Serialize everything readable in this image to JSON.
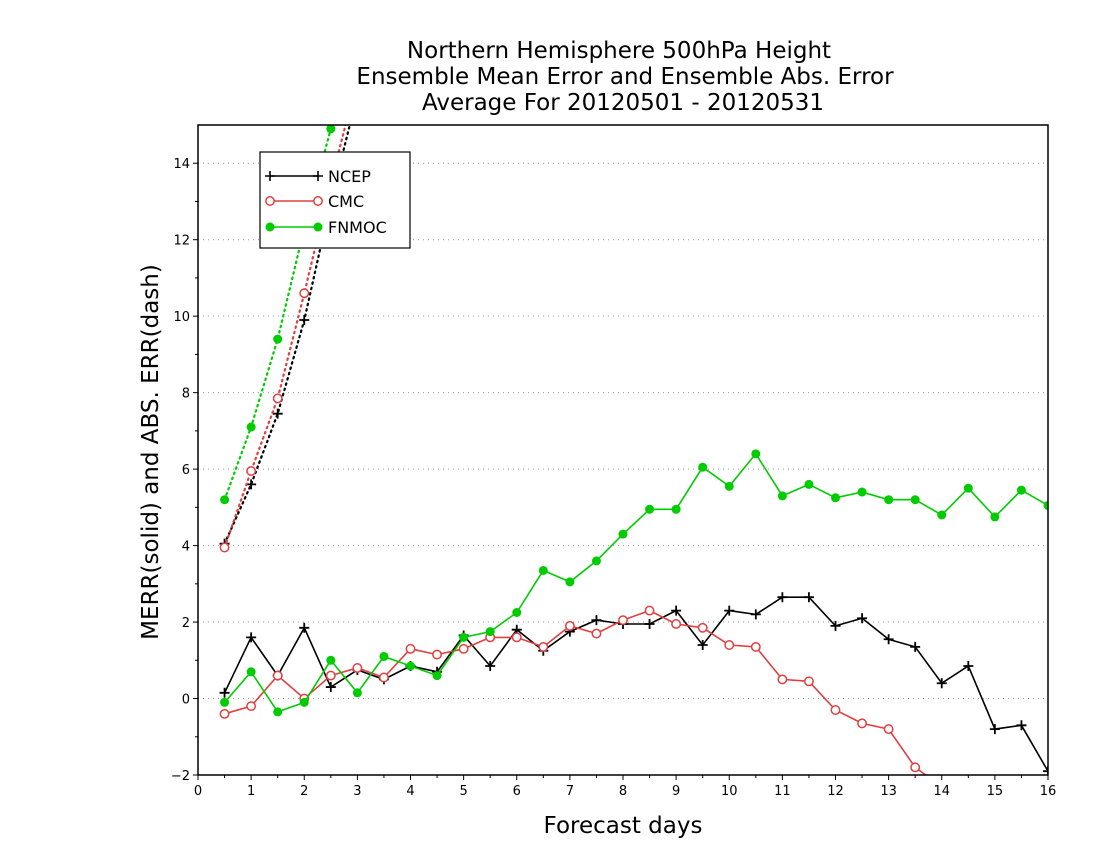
{
  "chart_data": {
    "type": "line",
    "title": [
      "Northern Hemisphere 500hPa Height",
      "Ensemble Mean Error and Ensemble Abs. Error",
      "Average For 20120501 - 20120531"
    ],
    "xlabel": "Forecast days",
    "ylabel": "MERR(solid) and ABS. ERR(dash)",
    "xlim": [
      0,
      16
    ],
    "ylim": [
      -2,
      15
    ],
    "xticks": [
      "0",
      "1",
      "2",
      "3",
      "4",
      "5",
      "6",
      "7",
      "8",
      "9",
      "10",
      "11",
      "12",
      "13",
      "14",
      "15",
      "16"
    ],
    "yticks": [
      "−2",
      "0",
      "2",
      "4",
      "6",
      "8",
      "10",
      "12",
      "14"
    ],
    "grid": "horizontal dotted",
    "legend_position": "top-left",
    "series": [
      {
        "name": "NCEP",
        "color": "#000000",
        "marker": "plus",
        "mean_error": [
          [
            0.5,
            0.15
          ],
          [
            1.0,
            1.6
          ],
          [
            1.5,
            0.6
          ],
          [
            2.0,
            1.85
          ],
          [
            2.5,
            0.3
          ],
          [
            3.0,
            0.75
          ],
          [
            3.5,
            0.5
          ],
          [
            4.0,
            0.85
          ],
          [
            4.5,
            0.7
          ],
          [
            5.0,
            1.65
          ],
          [
            5.5,
            0.85
          ],
          [
            6.0,
            1.8
          ],
          [
            6.5,
            1.25
          ],
          [
            7.0,
            1.75
          ],
          [
            7.5,
            2.05
          ],
          [
            8.0,
            1.95
          ],
          [
            8.5,
            1.95
          ],
          [
            9.0,
            2.3
          ],
          [
            9.5,
            1.4
          ],
          [
            10.0,
            2.3
          ],
          [
            10.5,
            2.2
          ],
          [
            11.0,
            2.65
          ],
          [
            11.5,
            2.65
          ],
          [
            12.0,
            1.9
          ],
          [
            12.5,
            2.1
          ],
          [
            13.0,
            1.55
          ],
          [
            13.5,
            1.35
          ],
          [
            14.0,
            0.4
          ],
          [
            14.5,
            0.85
          ],
          [
            15.0,
            -0.8
          ],
          [
            15.5,
            -0.7
          ],
          [
            16.0,
            -1.9
          ]
        ],
        "abs_error": [
          [
            0.5,
            4.05
          ],
          [
            1.0,
            5.6
          ],
          [
            1.5,
            7.45
          ],
          [
            2.0,
            9.9
          ],
          [
            2.5,
            13.0
          ],
          [
            3.0,
            15.8
          ]
        ]
      },
      {
        "name": "CMC",
        "color": "#e04040",
        "marker": "open-circle",
        "mean_error": [
          [
            0.5,
            -0.4
          ],
          [
            1.0,
            -0.2
          ],
          [
            1.5,
            0.6
          ],
          [
            2.0,
            0.0
          ],
          [
            2.5,
            0.6
          ],
          [
            3.0,
            0.8
          ],
          [
            3.5,
            0.55
          ],
          [
            4.0,
            1.3
          ],
          [
            4.5,
            1.15
          ],
          [
            5.0,
            1.3
          ],
          [
            5.5,
            1.6
          ],
          [
            6.0,
            1.6
          ],
          [
            6.5,
            1.35
          ],
          [
            7.0,
            1.9
          ],
          [
            7.5,
            1.7
          ],
          [
            8.0,
            2.05
          ],
          [
            8.5,
            2.3
          ],
          [
            9.0,
            1.95
          ],
          [
            9.5,
            1.85
          ],
          [
            10.0,
            1.4
          ],
          [
            10.5,
            1.35
          ],
          [
            11.0,
            0.5
          ],
          [
            11.5,
            0.45
          ],
          [
            12.0,
            -0.3
          ],
          [
            12.5,
            -0.65
          ],
          [
            13.0,
            -0.8
          ],
          [
            13.5,
            -1.8
          ],
          [
            14.0,
            -2.3
          ]
        ],
        "abs_error": [
          [
            0.5,
            3.95
          ],
          [
            1.0,
            5.95
          ],
          [
            1.5,
            7.85
          ],
          [
            2.0,
            10.6
          ],
          [
            2.5,
            13.5
          ],
          [
            3.0,
            16.2
          ]
        ]
      },
      {
        "name": "FNMOC",
        "color": "#00cc00",
        "marker": "filled-circle",
        "mean_error": [
          [
            0.5,
            -0.1
          ],
          [
            1.0,
            0.7
          ],
          [
            1.5,
            -0.35
          ],
          [
            2.0,
            -0.1
          ],
          [
            2.5,
            1.0
          ],
          [
            3.0,
            0.15
          ],
          [
            3.5,
            1.1
          ],
          [
            4.0,
            0.85
          ],
          [
            4.5,
            0.6
          ],
          [
            5.0,
            1.6
          ],
          [
            5.5,
            1.75
          ],
          [
            6.0,
            2.25
          ],
          [
            6.5,
            3.35
          ],
          [
            7.0,
            3.05
          ],
          [
            7.5,
            3.6
          ],
          [
            8.0,
            4.3
          ],
          [
            8.5,
            4.95
          ],
          [
            9.0,
            4.95
          ],
          [
            9.5,
            6.05
          ],
          [
            10.0,
            5.55
          ],
          [
            10.5,
            6.4
          ],
          [
            11.0,
            5.3
          ],
          [
            11.5,
            5.6
          ],
          [
            12.0,
            5.25
          ],
          [
            12.5,
            5.4
          ],
          [
            13.0,
            5.2
          ],
          [
            13.5,
            5.2
          ],
          [
            14.0,
            4.8
          ],
          [
            14.5,
            5.5
          ],
          [
            15.0,
            4.75
          ],
          [
            15.5,
            5.45
          ],
          [
            16.0,
            5.05
          ]
        ],
        "abs_error": [
          [
            0.5,
            5.2
          ],
          [
            1.0,
            7.1
          ],
          [
            1.5,
            9.4
          ],
          [
            2.0,
            12.3
          ],
          [
            2.5,
            14.9
          ],
          [
            3.0,
            17.5
          ]
        ]
      }
    ]
  }
}
